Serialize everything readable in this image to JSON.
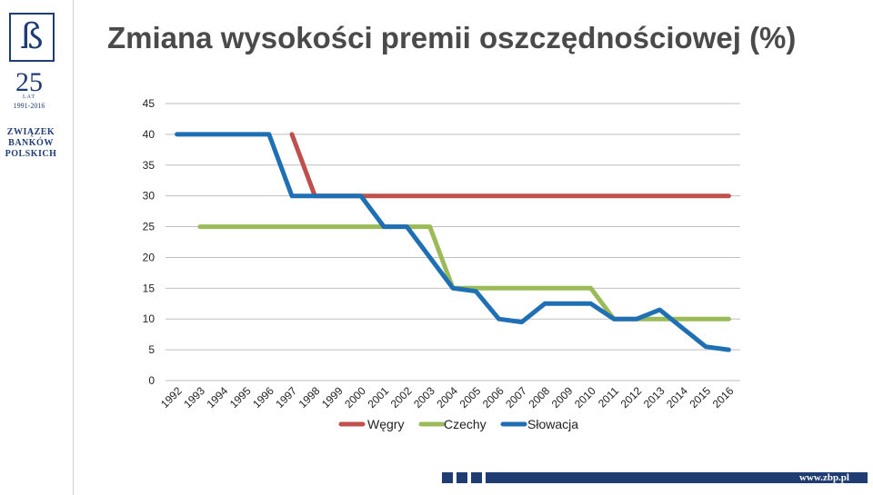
{
  "branding": {
    "logo_letter": "ß",
    "anniversary_number": "25",
    "anniversary_word": "LAT",
    "anniversary_years": "1991-2016",
    "org_lines": [
      "ZWIĄZEK",
      "BANKÓW",
      "POLSKICH"
    ],
    "footer_url": "www.zbp.pl",
    "brand_color": "#1f3d73"
  },
  "chart_data": {
    "type": "line",
    "title": "Zmiana wysokości premii oszczędnościowej  (%)",
    "xlabel": "",
    "ylabel": "",
    "ylim": [
      0,
      45
    ],
    "yticks": [
      0,
      5,
      10,
      15,
      20,
      25,
      30,
      35,
      40,
      45
    ],
    "grid": true,
    "legend_position": "bottom",
    "categories": [
      "1992",
      "1993",
      "1994",
      "1995",
      "1996",
      "1997",
      "1998",
      "1999",
      "2000",
      "2001",
      "2002",
      "2003",
      "2004",
      "2005",
      "2006",
      "2007",
      "2008",
      "2009",
      "2010",
      "2011",
      "2012",
      "2013",
      "2014",
      "2015",
      "2016"
    ],
    "series": [
      {
        "name": "Węgry",
        "color": "#c0504d",
        "values": [
          null,
          null,
          null,
          null,
          null,
          40,
          30,
          30,
          30,
          30,
          30,
          30,
          30,
          30,
          30,
          30,
          30,
          30,
          30,
          30,
          30,
          30,
          30,
          30,
          30
        ]
      },
      {
        "name": "Czechy",
        "color": "#9bbb59",
        "values": [
          null,
          25,
          25,
          25,
          25,
          25,
          25,
          25,
          25,
          25,
          25,
          25,
          15,
          15,
          15,
          15,
          15,
          15,
          15,
          10,
          10,
          10,
          10,
          10,
          10
        ]
      },
      {
        "name": "Słowacja",
        "color": "#1f6fb5",
        "values": [
          40,
          40,
          40,
          40,
          40,
          30,
          30,
          30,
          30,
          25,
          25,
          20,
          15,
          14.5,
          10,
          9.5,
          12.5,
          12.5,
          12.5,
          10,
          10,
          11.5,
          8.5,
          5.5,
          5
        ]
      }
    ]
  }
}
